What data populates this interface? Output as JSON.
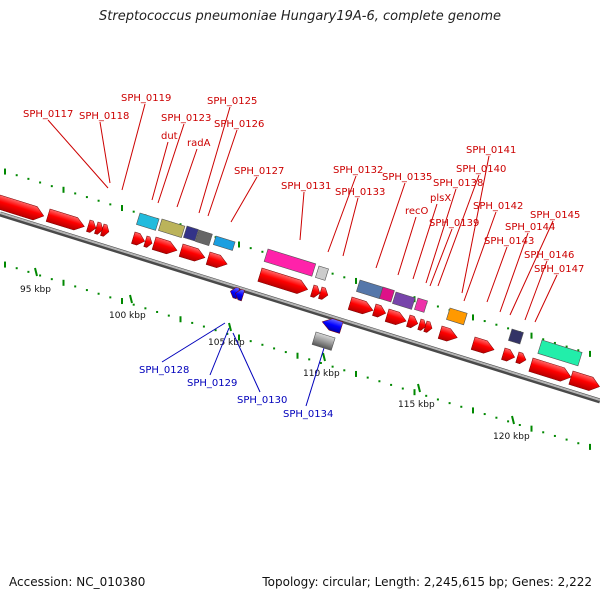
{
  "title": "Streptococcus pneumoniae Hungary19A-6, complete genome",
  "footer": {
    "accession": "Accession: NC_010380",
    "topology": "Topology: circular; Length: 2,245,615 bp; Genes: 2,222"
  },
  "scale_labels": [
    "95 kbp",
    "100 kbp",
    "105 kbp",
    "110 kbp",
    "115 kbp",
    "120 kbp"
  ],
  "forward_gene_labels": [
    "SPH_0117",
    "SPH_0118",
    "SPH_0119",
    "SPH_0123",
    "dut",
    "radA",
    "SPH_0125",
    "SPH_0126",
    "SPH_0127",
    "SPH_0131",
    "SPH_0132",
    "SPH_0133",
    "SPH_0135",
    "recO",
    "plsX",
    "SPH_0138",
    "SPH_0139",
    "SPH_0140",
    "SPH_0141",
    "SPH_0142",
    "SPH_0143",
    "SPH_0144",
    "SPH_0145",
    "SPH_0146",
    "SPH_0147"
  ],
  "reverse_gene_labels": [
    "SPH_0128",
    "SPH_0129",
    "SPH_0130",
    "SPH_0134"
  ],
  "colors": {
    "forward_gene": "#ff0000",
    "reverse_gene": "#0000ff",
    "backbone": "#888888",
    "tick": "#008800",
    "forward_label": "#cc0000",
    "reverse_label": "#0000bb"
  }
}
